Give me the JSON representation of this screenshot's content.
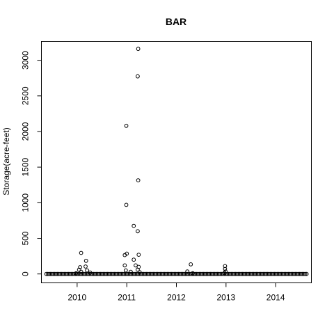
{
  "chart_data": {
    "type": "scatter",
    "title": "BAR",
    "xlabel": "",
    "ylabel": "Storage(acre-feet)",
    "xlim": [
      2009.28,
      2014.72
    ],
    "ylim": [
      -125,
      3265
    ],
    "xticks": [
      2010,
      2011,
      2012,
      2013,
      2014
    ],
    "xtick_labels": [
      "2010",
      "2011",
      "2012",
      "2013",
      "2014"
    ],
    "yticks": [
      0,
      500,
      1000,
      1500,
      2000,
      2500,
      3000
    ],
    "ytick_labels": [
      "0",
      "500",
      "1000",
      "1500",
      "2000",
      "2500",
      "3000"
    ],
    "grid": false,
    "marker": "open-circle",
    "baseline": {
      "from": 2009.38,
      "to": 2014.65,
      "value": 0
    },
    "points": [
      [
        2010.08,
        295
      ],
      [
        2010.06,
        95
      ],
      [
        2010.04,
        60
      ],
      [
        2010.08,
        30
      ],
      [
        2010.18,
        185
      ],
      [
        2010.17,
        105
      ],
      [
        2010.2,
        50
      ],
      [
        2010.26,
        20
      ],
      [
        2009.98,
        10
      ],
      [
        2010.96,
        265
      ],
      [
        2011.0,
        285
      ],
      [
        2010.96,
        120
      ],
      [
        2010.98,
        50
      ],
      [
        2011.08,
        30
      ],
      [
        2011.14,
        200
      ],
      [
        2011.18,
        120
      ],
      [
        2011.24,
        100
      ],
      [
        2011.24,
        270
      ],
      [
        2011.22,
        60
      ],
      [
        2011.26,
        25
      ],
      [
        2010.99,
        970
      ],
      [
        2010.99,
        2080
      ],
      [
        2011.14,
        675
      ],
      [
        2011.22,
        600
      ],
      [
        2011.23,
        1315
      ],
      [
        2011.22,
        2775
      ],
      [
        2011.23,
        3160
      ],
      [
        2012.22,
        35
      ],
      [
        2012.29,
        135
      ],
      [
        2012.33,
        10
      ],
      [
        2012.98,
        110
      ],
      [
        2012.98,
        70
      ],
      [
        2012.99,
        35
      ],
      [
        2012.97,
        15
      ]
    ]
  }
}
